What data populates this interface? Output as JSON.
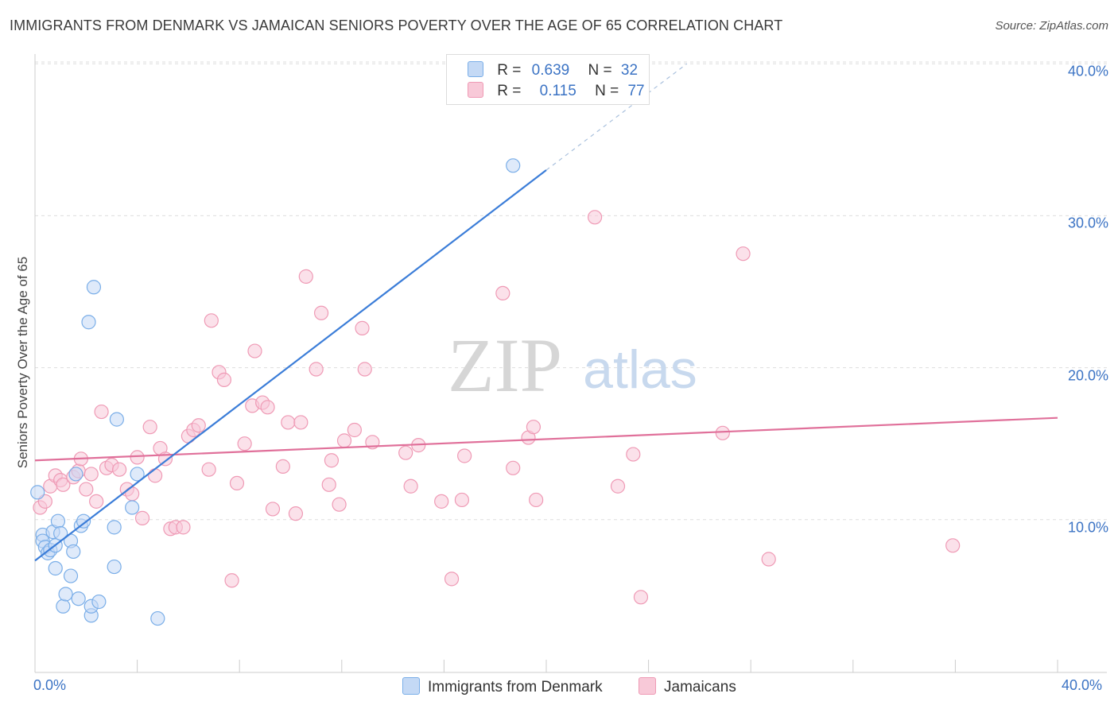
{
  "chart_data": {
    "type": "scatter",
    "title": "IMMIGRANTS FROM DENMARK VS JAMAICAN SENIORS POVERTY OVER THE AGE OF 65 CORRELATION CHART",
    "source": "Source: ZipAtlas.com",
    "xlabel": "",
    "ylabel": "Seniors Poverty Over the Age of 65",
    "xlim": [
      0,
      40
    ],
    "ylim": [
      0,
      40
    ],
    "x_tick_labels": [
      "0.0%",
      "40.0%"
    ],
    "y_ticks": [
      10,
      20,
      30,
      40
    ],
    "y_tick_labels": [
      "10.0%",
      "20.0%",
      "30.0%",
      "40.0%"
    ],
    "grid": true,
    "watermark": "ZIPatlas",
    "legend": {
      "rows": [
        {
          "r_label": "R =",
          "r_value": "0.639",
          "n_label": "N =",
          "n_value": "32"
        },
        {
          "r_label": "R =",
          "r_value": "0.115",
          "n_label": "N =",
          "n_value": "77"
        }
      ]
    },
    "series": [
      {
        "name": "Immigrants from Denmark",
        "color": "#7aaee8",
        "fill": "#c4d9f5",
        "line_color": "#3b7dd8",
        "trend": {
          "x0": 0,
          "y0": 7.3,
          "x1": 20,
          "y1": 33.0,
          "dash_x1": 25.5,
          "dash_y1": 40.0
        },
        "points": [
          [
            0.1,
            11.8
          ],
          [
            0.3,
            9.0
          ],
          [
            0.3,
            8.6
          ],
          [
            0.4,
            8.2
          ],
          [
            0.5,
            7.8
          ],
          [
            0.6,
            8.0
          ],
          [
            0.7,
            9.2
          ],
          [
            0.8,
            8.3
          ],
          [
            0.8,
            6.8
          ],
          [
            0.9,
            9.9
          ],
          [
            1.0,
            9.1
          ],
          [
            1.1,
            4.3
          ],
          [
            1.2,
            5.1
          ],
          [
            1.4,
            8.6
          ],
          [
            1.4,
            6.3
          ],
          [
            1.5,
            7.9
          ],
          [
            1.7,
            4.8
          ],
          [
            1.8,
            9.6
          ],
          [
            1.9,
            9.9
          ],
          [
            2.1,
            23.0
          ],
          [
            2.2,
            3.7
          ],
          [
            2.2,
            4.3
          ],
          [
            2.3,
            25.3
          ],
          [
            2.5,
            4.6
          ],
          [
            3.1,
            6.9
          ],
          [
            3.1,
            9.5
          ],
          [
            3.2,
            16.6
          ],
          [
            3.8,
            10.8
          ],
          [
            4.0,
            13.0
          ],
          [
            4.8,
            3.5
          ],
          [
            1.6,
            13.0
          ],
          [
            18.7,
            33.3
          ]
        ]
      },
      {
        "name": "Jamaicans",
        "color": "#ef9ab5",
        "fill": "#f8c9d8",
        "line_color": "#e0709a",
        "trend": {
          "x0": 0,
          "y0": 13.9,
          "x1": 40,
          "y1": 16.7
        },
        "points": [
          [
            0.2,
            10.8
          ],
          [
            0.4,
            11.2
          ],
          [
            0.6,
            12.2
          ],
          [
            0.8,
            12.9
          ],
          [
            1.0,
            12.6
          ],
          [
            1.1,
            12.3
          ],
          [
            1.5,
            12.8
          ],
          [
            1.7,
            13.2
          ],
          [
            1.8,
            14.0
          ],
          [
            2.0,
            12.0
          ],
          [
            2.2,
            13.0
          ],
          [
            2.4,
            11.2
          ],
          [
            2.6,
            17.1
          ],
          [
            2.8,
            13.4
          ],
          [
            3.0,
            13.6
          ],
          [
            3.3,
            13.3
          ],
          [
            3.6,
            12.0
          ],
          [
            3.8,
            11.7
          ],
          [
            4.0,
            14.1
          ],
          [
            4.2,
            10.1
          ],
          [
            4.5,
            16.1
          ],
          [
            4.7,
            12.9
          ],
          [
            4.9,
            14.7
          ],
          [
            5.1,
            14.0
          ],
          [
            5.3,
            9.4
          ],
          [
            5.5,
            9.5
          ],
          [
            5.8,
            9.5
          ],
          [
            6.0,
            15.5
          ],
          [
            6.2,
            15.9
          ],
          [
            6.4,
            16.2
          ],
          [
            6.8,
            13.3
          ],
          [
            6.9,
            23.1
          ],
          [
            7.2,
            19.7
          ],
          [
            7.4,
            19.2
          ],
          [
            7.7,
            6.0
          ],
          [
            7.9,
            12.4
          ],
          [
            8.2,
            15.0
          ],
          [
            8.5,
            17.5
          ],
          [
            8.6,
            21.1
          ],
          [
            8.9,
            17.7
          ],
          [
            9.1,
            17.4
          ],
          [
            9.3,
            10.7
          ],
          [
            9.7,
            13.5
          ],
          [
            9.9,
            16.4
          ],
          [
            10.2,
            10.4
          ],
          [
            10.4,
            16.4
          ],
          [
            10.6,
            26.0
          ],
          [
            11.0,
            19.9
          ],
          [
            11.2,
            23.6
          ],
          [
            11.5,
            12.3
          ],
          [
            11.6,
            13.9
          ],
          [
            11.9,
            11.0
          ],
          [
            12.1,
            15.2
          ],
          [
            12.5,
            15.9
          ],
          [
            12.8,
            22.6
          ],
          [
            12.9,
            19.9
          ],
          [
            13.2,
            15.1
          ],
          [
            14.5,
            14.4
          ],
          [
            14.7,
            12.2
          ],
          [
            15.0,
            14.9
          ],
          [
            15.9,
            11.2
          ],
          [
            16.3,
            6.1
          ],
          [
            16.7,
            11.3
          ],
          [
            16.8,
            14.2
          ],
          [
            18.3,
            24.9
          ],
          [
            18.7,
            13.4
          ],
          [
            19.3,
            15.4
          ],
          [
            19.5,
            16.1
          ],
          [
            19.6,
            11.3
          ],
          [
            21.9,
            29.9
          ],
          [
            22.8,
            12.2
          ],
          [
            23.4,
            14.3
          ],
          [
            23.7,
            4.9
          ],
          [
            26.9,
            15.7
          ],
          [
            27.7,
            27.5
          ],
          [
            28.7,
            7.4
          ],
          [
            35.9,
            8.3
          ]
        ]
      }
    ]
  },
  "watermark_text": {
    "zip": "ZIP",
    "atlas": "atlas"
  }
}
